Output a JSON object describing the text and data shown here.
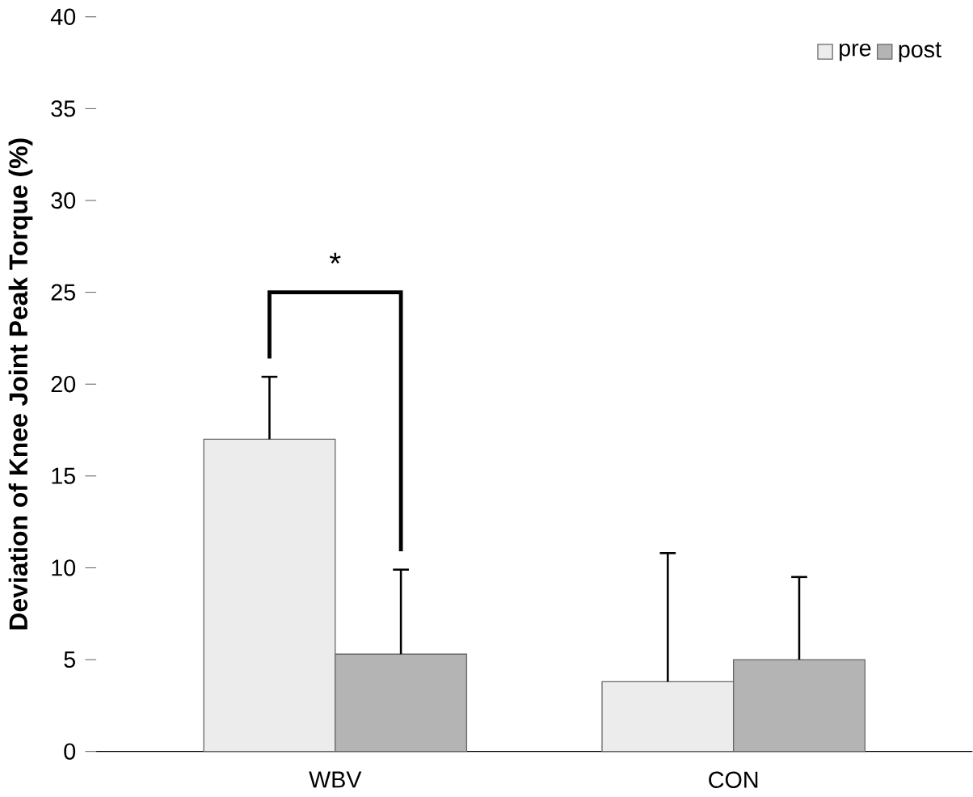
{
  "chart_data": {
    "type": "bar",
    "ylabel": "Deviation of Knee Joint Peak Torque (%)",
    "categories": [
      "WBV",
      "CON"
    ],
    "series": [
      {
        "name": "pre",
        "color": "#ececec",
        "values": [
          17,
          3.8
        ],
        "errors": [
          [
            17,
            20.4
          ],
          [
            3.8,
            10.8
          ]
        ]
      },
      {
        "name": "post",
        "color": "#b4b4b4",
        "values": [
          5.3,
          5.0
        ],
        "errors": [
          [
            5.3,
            9.9
          ],
          [
            5.0,
            9.5
          ]
        ]
      }
    ],
    "ylim": [
      0,
      40
    ],
    "yticks": [
      0,
      5,
      10,
      15,
      20,
      25,
      30,
      35,
      40
    ],
    "legend": "top right",
    "grid": false,
    "annotations": [
      "*"
    ]
  }
}
